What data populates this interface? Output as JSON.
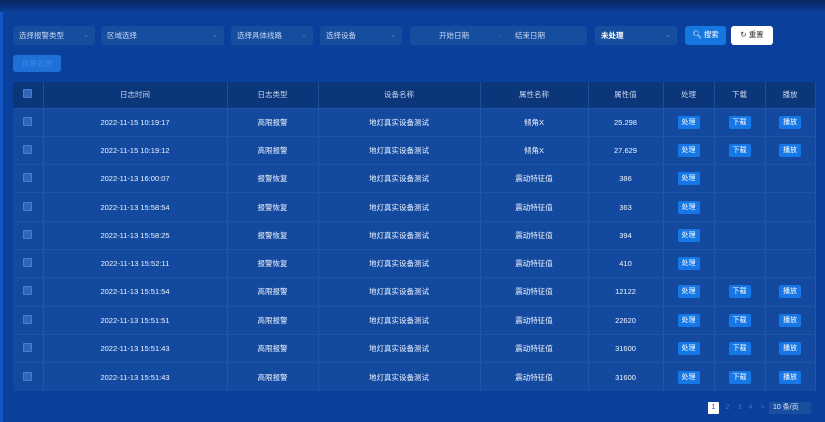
{
  "filters": {
    "alarm_type": "选择报警类型",
    "region": "区域选择",
    "line": "选择具体线路",
    "device": "选择设备",
    "start_date": "开始日期",
    "end_date": "结束日期",
    "status": "未处理",
    "search": "搜索",
    "reset": "重置"
  },
  "batch_button": "批量处理",
  "table": {
    "headers": [
      "日志时间",
      "日志类型",
      "设备名称",
      "属性名称",
      "属性值",
      "处理",
      "下载",
      "播放"
    ],
    "rows": [
      {
        "time": "2022-11-15 10:19:17",
        "type": "高限报警",
        "device": "地灯真实设备测试",
        "attr": "倾角X",
        "value": "25.298",
        "handle": "处理",
        "download": "下载",
        "play": "播放"
      },
      {
        "time": "2022-11-15 10:19:12",
        "type": "高限报警",
        "device": "地灯真实设备测试",
        "attr": "倾角X",
        "value": "27.629",
        "handle": "处理",
        "download": "下载",
        "play": "播放"
      },
      {
        "time": "2022-11-13 16:00:07",
        "type": "报警恢复",
        "device": "地灯真实设备测试",
        "attr": "震动特征值",
        "value": "386",
        "handle": "处理"
      },
      {
        "time": "2022-11-13 15:58:54",
        "type": "报警恢复",
        "device": "地灯真实设备测试",
        "attr": "震动特征值",
        "value": "363",
        "handle": "处理"
      },
      {
        "time": "2022-11-13 15:58:25",
        "type": "报警恢复",
        "device": "地灯真实设备测试",
        "attr": "震动特征值",
        "value": "394",
        "handle": "处理"
      },
      {
        "time": "2022-11-13 15:52:11",
        "type": "报警恢复",
        "device": "地灯真实设备测试",
        "attr": "震动特征值",
        "value": "410",
        "handle": "处理"
      },
      {
        "time": "2022-11-13 15:51:54",
        "type": "高限报警",
        "device": "地灯真实设备测试",
        "attr": "震动特征值",
        "value": "12122",
        "handle": "处理",
        "download": "下载",
        "play": "播放"
      },
      {
        "time": "2022-11-13 15:51:51",
        "type": "高限报警",
        "device": "地灯真实设备测试",
        "attr": "震动特征值",
        "value": "22620",
        "handle": "处理",
        "download": "下载",
        "play": "播放"
      },
      {
        "time": "2022-11-13 15:51:43",
        "type": "高限报警",
        "device": "地灯真实设备测试",
        "attr": "震动特征值",
        "value": "31600",
        "handle": "处理",
        "download": "下载",
        "play": "播放"
      },
      {
        "time": "2022-11-13 15:51:43",
        "type": "高限报警",
        "device": "地灯真实设备测试",
        "attr": "震动特征值",
        "value": "31600",
        "handle": "处理",
        "download": "下载",
        "play": "播放"
      }
    ]
  },
  "pagination": {
    "pages": [
      "1",
      "2",
      "3",
      "4"
    ],
    "current": "1",
    "next": ">",
    "page_size": "10 条/页"
  }
}
